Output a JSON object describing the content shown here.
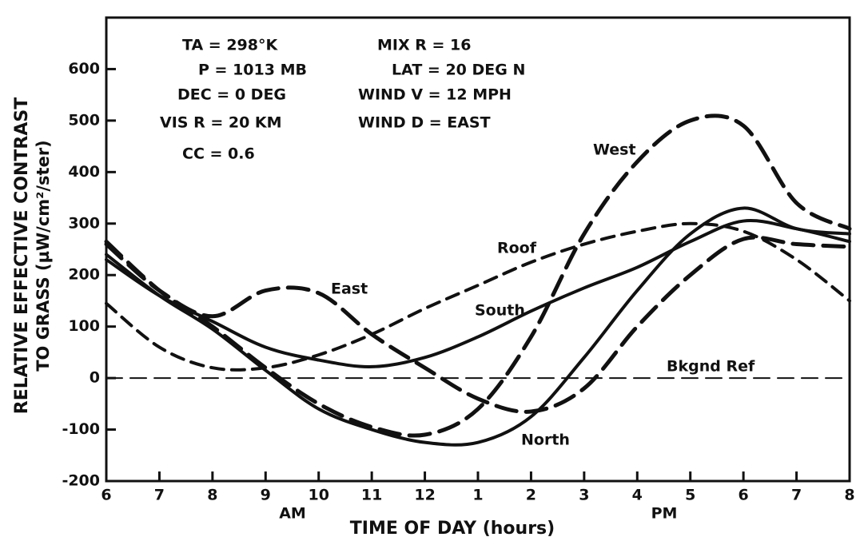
{
  "chart_data": {
    "type": "line",
    "xlabel": "TIME OF DAY (hours)",
    "ylabel": [
      "RELATIVE EFFECTIVE CONTRAST",
      "TO GRASS (µW/cm²/ster)"
    ],
    "x": [
      6,
      7,
      8,
      9,
      10,
      11,
      12,
      13,
      14,
      15,
      16,
      17,
      18,
      19,
      20
    ],
    "xlim": [
      6,
      20
    ],
    "xticks": [
      6,
      7,
      8,
      9,
      10,
      11,
      12,
      {
        "value": 13,
        "label": "1"
      },
      {
        "value": 14,
        "label": "2"
      },
      {
        "value": 15,
        "label": "3"
      },
      {
        "value": 16,
        "label": "4"
      },
      {
        "value": 17,
        "label": "5"
      },
      {
        "value": 18,
        "label": "6"
      },
      {
        "value": 19,
        "label": "7"
      },
      {
        "value": 20,
        "label": "8"
      }
    ],
    "ylim": [
      -200,
      700
    ],
    "yticks": [
      -200,
      -100,
      0,
      100,
      200,
      300,
      400,
      500,
      600
    ],
    "grid": false,
    "period_labels": [
      "AM",
      "PM"
    ],
    "annotations": [
      "TA = 298°K",
      "P = 1013 MB",
      "DEC = 0 DEG",
      "VIS R = 20 KM",
      "CC = 0.6",
      "MIX R = 16",
      "LAT = 20 DEG N",
      "WIND V = 12 MPH",
      "WIND D = EAST"
    ],
    "series": [
      {
        "name": "West",
        "color": "#111111",
        "dash": "long",
        "values": [
          265,
          170,
          100,
          20,
          -50,
          -95,
          -110,
          -60,
          80,
          280,
          420,
          500,
          490,
          340,
          290
        ]
      },
      {
        "name": "Roof",
        "color": "#111111",
        "dash": "medium",
        "values": [
          145,
          60,
          20,
          20,
          45,
          85,
          135,
          180,
          225,
          260,
          285,
          300,
          285,
          230,
          150
        ]
      },
      {
        "name": "South",
        "color": "#111111",
        "dash": "solid",
        "values": [
          230,
          160,
          110,
          60,
          35,
          22,
          40,
          80,
          130,
          175,
          215,
          265,
          305,
          290,
          265
        ]
      },
      {
        "name": "East",
        "color": "#111111",
        "dash": "long",
        "values": [
          260,
          170,
          120,
          170,
          165,
          85,
          20,
          -40,
          -65,
          -20,
          100,
          200,
          270,
          260,
          255
        ]
      },
      {
        "name": "North",
        "color": "#111111",
        "dash": "solid",
        "values": [
          240,
          160,
          95,
          15,
          -60,
          -100,
          -125,
          -125,
          -75,
          40,
          170,
          280,
          330,
          290,
          280
        ]
      },
      {
        "name": "Bkgnd Ref",
        "color": "#111111",
        "dash": "thin",
        "values": [
          0,
          0,
          0,
          0,
          0,
          0,
          0,
          0,
          0,
          0,
          0,
          0,
          0,
          0,
          0
        ]
      }
    ]
  }
}
